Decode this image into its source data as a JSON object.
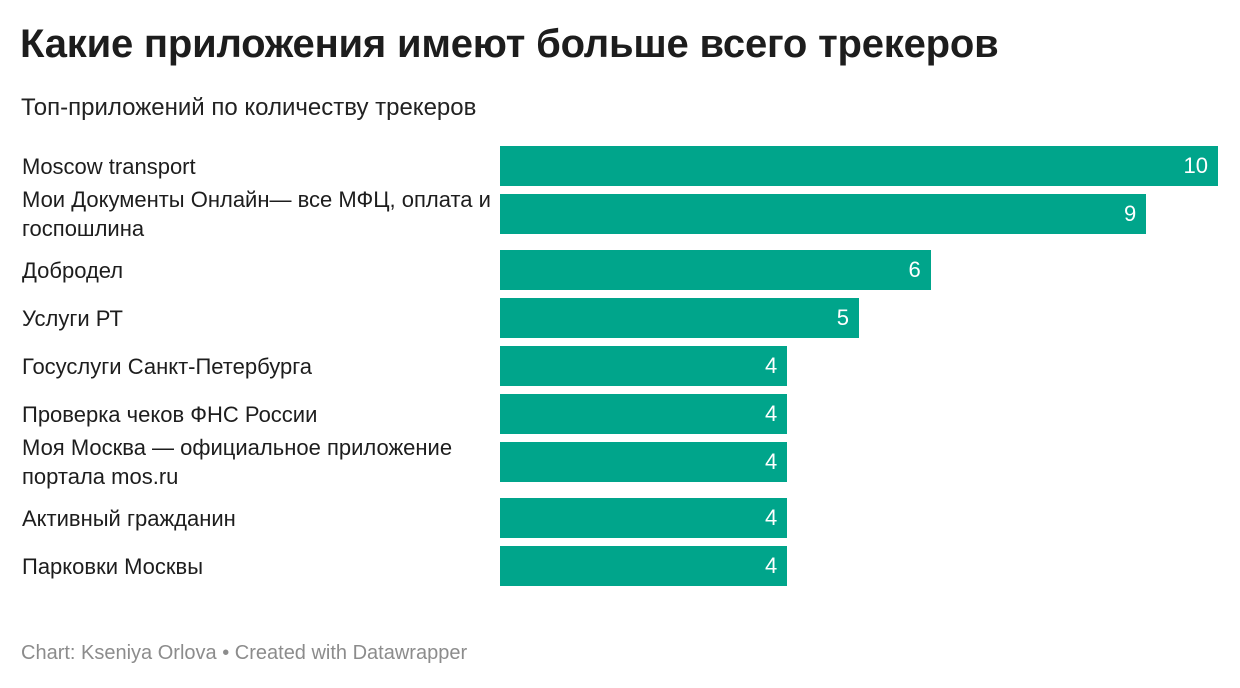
{
  "title": "Какие приложения имеют больше всего трекеров",
  "subtitle": "Топ-приложений по количеству трекеров",
  "footer": {
    "credit": "Chart: Kseniya Orlova",
    "separator": "•",
    "created": "Created with Datawrapper"
  },
  "colors": {
    "bar": "#00a58b",
    "value_text": "#ffffff",
    "footer_text": "#8c8c8c"
  },
  "chart_data": {
    "type": "bar",
    "orientation": "horizontal",
    "title": "Какие приложения имеют больше всего трекеров",
    "subtitle": "Топ-приложений по количеству трекеров",
    "categories": [
      "Moscow transport",
      "Мои Документы Онлайн— все МФЦ, оплата и госпошлина",
      "Добродел",
      "Услуги РТ",
      "Госуслуги Санкт-Петербурга",
      "Проверка чеков ФНС России",
      "Моя Москва — официальное приложение портала mos.ru",
      "Активный гражданин",
      "Парковки Москвы"
    ],
    "values": [
      10,
      9,
      6,
      5,
      4,
      4,
      4,
      4,
      4
    ],
    "xlim": [
      0,
      10
    ],
    "grid": false,
    "legend": "none",
    "data_labels": "inside-end"
  }
}
